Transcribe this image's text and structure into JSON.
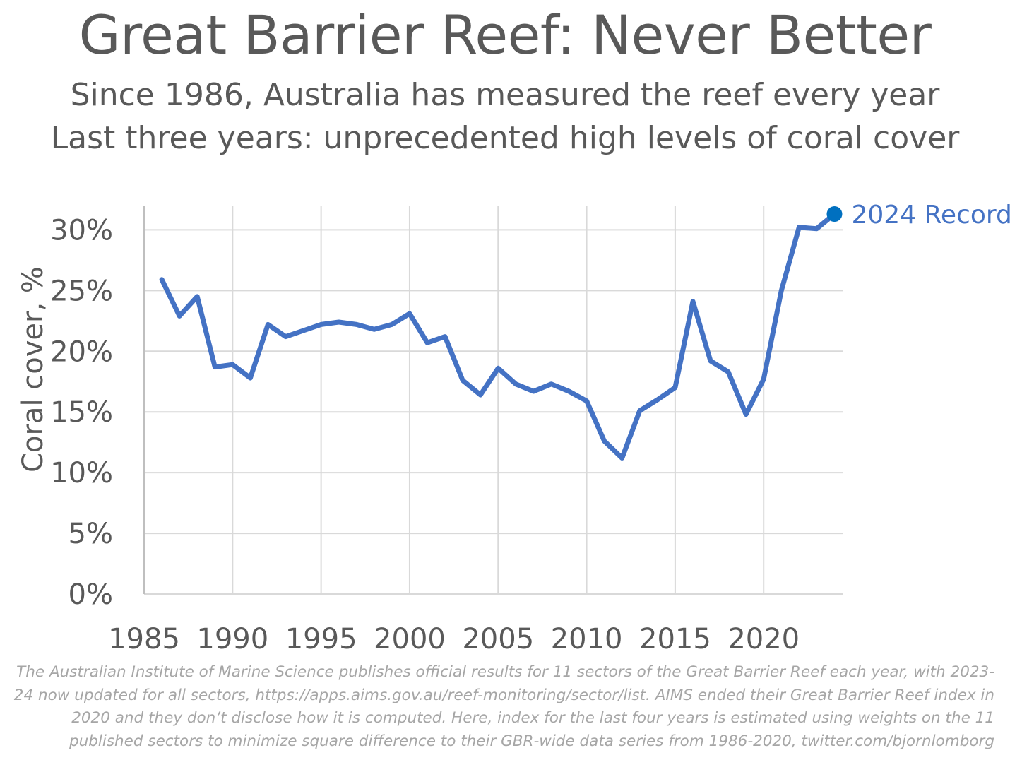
{
  "chart_data": {
    "type": "line",
    "title": "Great Barrier Reef: Never Better",
    "subtitle": [
      "Since 1986, Australia has measured the reef every year",
      "Last three years: unprecedented high levels of coral cover"
    ],
    "xlabel": "",
    "ylabel": "Coral cover, %",
    "xlim": [
      1985,
      2024.5
    ],
    "ylim": [
      0,
      32
    ],
    "x_ticks": [
      1985,
      1990,
      1995,
      2000,
      2005,
      2010,
      2015,
      2020
    ],
    "y_ticks": [
      0,
      5,
      10,
      15,
      20,
      25,
      30
    ],
    "y_tick_labels": [
      "0%",
      "5%",
      "10%",
      "15%",
      "20%",
      "25%",
      "30%"
    ],
    "grid": true,
    "series_color": "#4472C4",
    "x": [
      1986,
      1987,
      1988,
      1989,
      1990,
      1991,
      1992,
      1993,
      1994,
      1995,
      1996,
      1997,
      1998,
      1999,
      2000,
      2001,
      2002,
      2003,
      2004,
      2005,
      2006,
      2007,
      2008,
      2009,
      2010,
      2011,
      2012,
      2013,
      2014,
      2015,
      2016,
      2017,
      2018,
      2019,
      2020,
      2021,
      2022,
      2023,
      2024
    ],
    "values": [
      25.9,
      22.9,
      24.5,
      18.7,
      18.9,
      17.8,
      22.2,
      21.2,
      21.7,
      22.2,
      22.4,
      22.2,
      21.8,
      22.2,
      23.1,
      20.7,
      21.2,
      17.6,
      16.4,
      18.6,
      17.3,
      16.7,
      17.3,
      16.7,
      15.9,
      12.6,
      11.2,
      15.1,
      16.0,
      17.0,
      24.1,
      19.2,
      18.3,
      14.8,
      17.7,
      25.0,
      30.2,
      30.1,
      31.3
    ],
    "annotation": {
      "x": 2024,
      "y": 31.3,
      "text": "2024 Record",
      "color": "#0070C0"
    }
  },
  "footnote": "The Australian Institute of Marine Science publishes official results for 11 sectors of the Great Barrier Reef each year, with 2023-24 now updated for all sectors, https://apps.aims.gov.au/reef-monitoring/sector/list. AIMS ended their Great Barrier Reef index in 2020 and they don’t disclose how it is computed. Here, index for the last four years is estimated using weights on the 11 published sectors to minimize square difference to their GBR-wide data series from 1986-2020, twitter.com/bjornlomborg"
}
